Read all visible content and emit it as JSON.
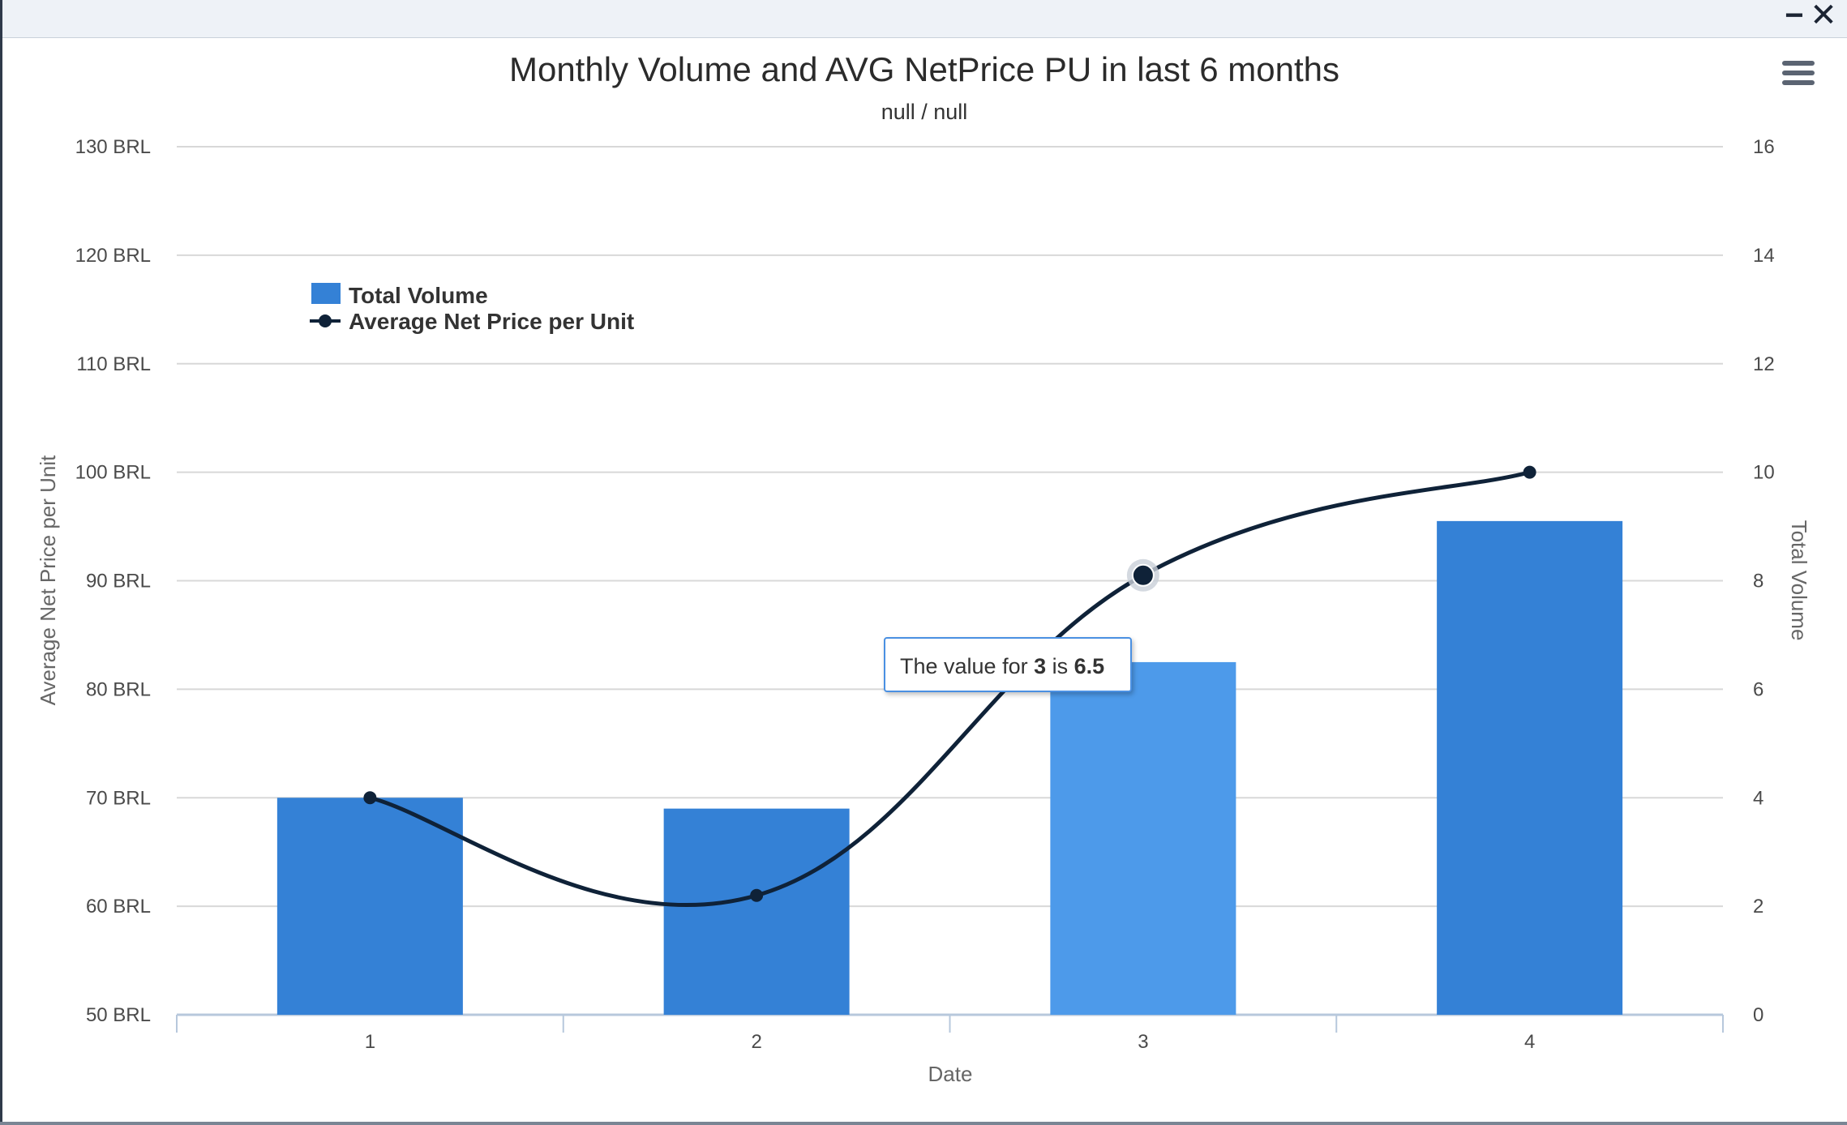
{
  "window": {
    "minimize_label": "−",
    "close_label": "✕",
    "menu_icon": "hamburger-icon"
  },
  "chart_data": {
    "type": "bar",
    "title": "Monthly Volume and AVG NetPrice PU in last 6 months",
    "subtitle": "null / null",
    "xlabel": "Date",
    "categories": [
      "1",
      "2",
      "3",
      "4"
    ],
    "y_left": {
      "label": "Average Net Price per Unit",
      "range": [
        50,
        130
      ],
      "ticks": [
        50,
        60,
        70,
        80,
        90,
        100,
        110,
        120,
        130
      ],
      "tick_labels": [
        "50 BRL",
        "60 BRL",
        "70 BRL",
        "80 BRL",
        "90 BRL",
        "100 BRL",
        "110 BRL",
        "120 BRL",
        "130 BRL"
      ]
    },
    "y_right": {
      "label": "Total Volume",
      "range": [
        0,
        16
      ],
      "ticks": [
        0,
        2,
        4,
        6,
        8,
        10,
        12,
        14,
        16
      ],
      "tick_labels": [
        "0",
        "2",
        "4",
        "6",
        "8",
        "10",
        "12",
        "14",
        "16"
      ]
    },
    "series": [
      {
        "name": "Total Volume",
        "type": "bar",
        "axis": "right",
        "color": "#3481d6",
        "hover_color": "#4d9aea",
        "values": [
          4.0,
          3.8,
          6.5,
          9.1
        ]
      },
      {
        "name": "Average Net Price per Unit",
        "type": "spline",
        "axis": "left",
        "color": "#0f2238",
        "values": [
          70,
          61,
          90.5,
          100
        ]
      }
    ],
    "grid": true,
    "legend": "top-left",
    "tooltip": {
      "prefix": "The value for ",
      "category": "3",
      "middle": " is ",
      "value": "6.5"
    }
  }
}
